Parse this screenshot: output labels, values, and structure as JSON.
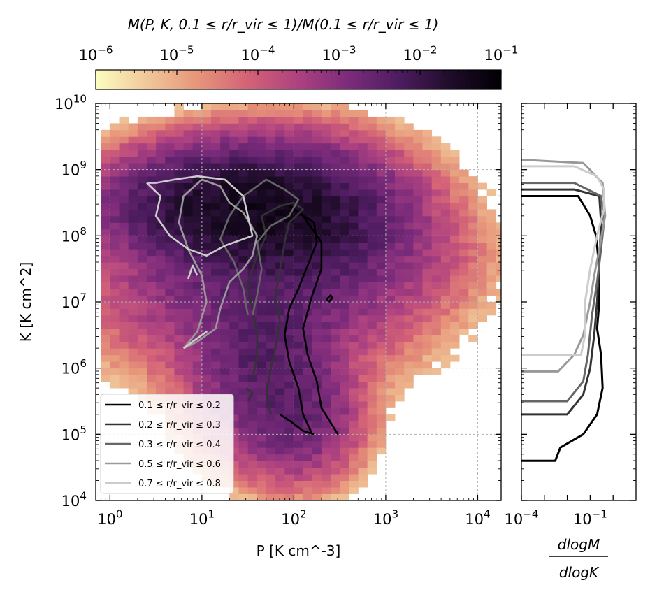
{
  "colorbar": {
    "title": "M(P, K, 0.1 ≤ r/r_vir ≤ 1)/M(0.1 ≤ r/r_vir ≤ 1)",
    "ticks": [
      "10^-6",
      "10^-5",
      "10^-4",
      "10^-3",
      "10^-2",
      "10^-1"
    ],
    "log_range": [
      -6,
      -1
    ],
    "scale": "log",
    "colormap_stops": [
      "#fcfdbf",
      "#f0c89a",
      "#e7967a",
      "#d46277",
      "#ad4180",
      "#7b2b7b",
      "#4d1c60",
      "#1f0c2a",
      "#000004"
    ]
  },
  "chart_data": [
    {
      "type": "heatmap",
      "panel": "main",
      "xlabel": "P [K cm^-3]",
      "ylabel": "K [K cm^2]",
      "x_scale": "log",
      "y_scale": "log",
      "xlim": [
        0.7,
        18000
      ],
      "ylim": [
        10000,
        10000000000
      ],
      "x_ticks": [
        "10^0",
        "10^1",
        "10^2",
        "10^3",
        "10^4"
      ],
      "y_ticks": [
        "10^4",
        "10^5",
        "10^6",
        "10^7",
        "10^8",
        "10^9",
        "10^10"
      ],
      "grid": true,
      "legend_position": "bottom-left",
      "heatmap_extent_note": "mass-weighted distribution, log10 fraction",
      "heat_blobs": [
        {
          "logP": 1.35,
          "logK": 8.45,
          "sigP": 0.55,
          "sigK": 0.35,
          "peak": -1.6
        },
        {
          "logP": 1.85,
          "logK": 8.25,
          "sigP": 0.55,
          "sigK": 0.45,
          "peak": -1.7
        },
        {
          "logP": 1.65,
          "logK": 7.4,
          "sigP": 0.7,
          "sigK": 0.6,
          "peak": -2.6
        },
        {
          "logP": 1.7,
          "logK": 6.2,
          "sigP": 0.35,
          "sigK": 0.6,
          "peak": -2.4
        },
        {
          "logP": 2.0,
          "logK": 5.3,
          "sigP": 0.3,
          "sigK": 0.4,
          "peak": -2.6
        },
        {
          "logP": 2.5,
          "logK": 7.7,
          "sigP": 0.6,
          "sigK": 0.4,
          "peak": -3.2
        }
      ],
      "contour_series": [
        {
          "label": "0.1 ≤ r/r_vir ≤ 0.2",
          "color": "#000000",
          "paths": [
            [
              [
                2.2,
                5.0
              ],
              [
                2.1,
                5.3
              ],
              [
                2.05,
                5.7
              ],
              [
                1.95,
                6.1
              ],
              [
                1.9,
                6.5
              ],
              [
                1.95,
                6.9
              ],
              [
                2.05,
                7.2
              ],
              [
                2.15,
                7.55
              ],
              [
                2.25,
                7.9
              ],
              [
                2.22,
                8.2
              ],
              [
                2.05,
                8.35
              ],
              [
                1.95,
                8.45
              ],
              [
                2.1,
                8.3
              ],
              [
                2.3,
                7.9
              ],
              [
                2.3,
                7.5
              ],
              [
                2.2,
                7.1
              ],
              [
                2.1,
                6.6
              ],
              [
                2.15,
                6.2
              ],
              [
                2.25,
                5.8
              ],
              [
                2.3,
                5.4
              ],
              [
                2.48,
                5.0
              ]
            ],
            [
              [
                1.85,
                5.3
              ],
              [
                1.98,
                5.18
              ],
              [
                2.1,
                5.05
              ],
              [
                2.22,
                5.0
              ]
            ],
            [
              [
                2.38,
                7.0
              ],
              [
                2.42,
                7.06
              ],
              [
                2.4,
                7.1
              ],
              [
                2.36,
                7.04
              ],
              [
                2.38,
                7.0
              ]
            ]
          ]
        },
        {
          "label": "0.2 ≤ r/r_vir ≤ 0.3",
          "color": "#333333",
          "paths": [
            [
              [
                1.55,
                5.8
              ],
              [
                1.6,
                6.2
              ],
              [
                1.6,
                6.5
              ],
              [
                1.55,
                6.9
              ],
              [
                1.5,
                7.3
              ],
              [
                1.6,
                7.7
              ],
              [
                1.7,
                8.0
              ],
              [
                1.65,
                8.3
              ],
              [
                1.85,
                8.45
              ],
              [
                2.0,
                8.5
              ],
              [
                2.1,
                8.4
              ],
              [
                1.95,
                8.2
              ],
              [
                1.9,
                7.9
              ],
              [
                1.85,
                7.5
              ],
              [
                1.8,
                7.1
              ],
              [
                1.85,
                6.7
              ],
              [
                1.8,
                6.3
              ],
              [
                1.75,
                6.0
              ],
              [
                1.7,
                5.6
              ],
              [
                1.75,
                5.3
              ]
            ],
            [
              [
                1.5,
                5.5
              ],
              [
                1.55,
                5.62
              ],
              [
                1.48,
                5.7
              ]
            ]
          ]
        },
        {
          "label": "0.3 ≤ r/r_vir ≤ 0.4",
          "color": "#666666",
          "paths": [
            [
              [
                1.5,
                6.8
              ],
              [
                1.45,
                7.2
              ],
              [
                1.35,
                7.6
              ],
              [
                1.2,
                7.95
              ],
              [
                1.3,
                8.3
              ],
              [
                1.45,
                8.6
              ],
              [
                1.7,
                8.85
              ],
              [
                1.9,
                8.7
              ],
              [
                2.05,
                8.55
              ],
              [
                1.95,
                8.3
              ],
              [
                1.75,
                8.15
              ],
              [
                1.6,
                7.9
              ],
              [
                1.65,
                7.5
              ],
              [
                1.6,
                7.1
              ],
              [
                1.55,
                6.8
              ]
            ]
          ]
        },
        {
          "label": "0.5 ≤ r/r_vir ≤ 0.6",
          "color": "#999999",
          "paths": [
            [
              [
                0.8,
                6.3
              ],
              [
                0.95,
                6.55
              ],
              [
                1.05,
                7.0
              ],
              [
                1.0,
                7.4
              ],
              [
                0.85,
                7.8
              ],
              [
                0.75,
                8.2
              ],
              [
                0.8,
                8.6
              ],
              [
                1.0,
                8.85
              ],
              [
                1.2,
                8.75
              ],
              [
                1.3,
                8.5
              ],
              [
                1.45,
                8.35
              ],
              [
                1.6,
                8.0
              ],
              [
                1.55,
                7.7
              ],
              [
                1.45,
                7.5
              ],
              [
                1.3,
                7.3
              ],
              [
                1.2,
                6.9
              ],
              [
                1.15,
                6.6
              ],
              [
                0.95,
                6.4
              ],
              [
                0.8,
                6.3
              ]
            ]
          ]
        },
        {
          "label": "0.7 ≤ r/r_vir ≤ 0.8",
          "color": "#cccccc",
          "paths": [
            [
              [
                0.4,
                8.8
              ],
              [
                0.55,
                8.6
              ],
              [
                0.5,
                8.3
              ],
              [
                0.65,
                8.0
              ],
              [
                0.85,
                7.8
              ],
              [
                1.05,
                7.7
              ],
              [
                1.25,
                7.85
              ],
              [
                1.55,
                8.0
              ],
              [
                1.5,
                8.3
              ],
              [
                1.45,
                8.6
              ],
              [
                1.25,
                8.85
              ],
              [
                0.95,
                8.9
              ],
              [
                0.7,
                8.85
              ],
              [
                0.5,
                8.8
              ],
              [
                0.4,
                8.8
              ]
            ],
            [
              [
                0.8,
                6.3
              ],
              [
                0.95,
                6.45
              ],
              [
                1.05,
                6.55
              ],
              [
                0.9,
                6.4
              ],
              [
                0.8,
                6.3
              ]
            ],
            [
              [
                0.85,
                7.35
              ],
              [
                0.9,
                7.55
              ],
              [
                0.95,
                7.4
              ]
            ]
          ]
        }
      ]
    },
    {
      "type": "line",
      "panel": "marginal",
      "xlabel": "dlogM / dlogK",
      "x_scale": "log",
      "y_scale": "log",
      "xlim": [
        0.0001,
        10
      ],
      "ylim": [
        10000,
        10000000000
      ],
      "x_ticks": [
        "10^-4",
        "10^-1"
      ],
      "series": [
        {
          "label": "0.1 ≤ r/r_vir ≤ 0.2",
          "color": "#000000",
          "points": [
            [
              0.0001,
              4.6
            ],
            [
              0.003,
              4.6
            ],
            [
              0.005,
              4.8
            ],
            [
              0.05,
              5.0
            ],
            [
              0.2,
              5.3
            ],
            [
              0.35,
              5.7
            ],
            [
              0.3,
              6.2
            ],
            [
              0.2,
              6.6
            ],
            [
              0.25,
              7.0
            ],
            [
              0.25,
              7.5
            ],
            [
              0.18,
              8.0
            ],
            [
              0.1,
              8.3
            ],
            [
              0.03,
              8.6
            ],
            [
              0.0001,
              8.6
            ]
          ]
        },
        {
          "label": "0.2 ≤ r/r_vir ≤ 0.3",
          "color": "#333333",
          "points": [
            [
              0.0001,
              5.3
            ],
            [
              0.01,
              5.3
            ],
            [
              0.05,
              5.6
            ],
            [
              0.1,
              6.0
            ],
            [
              0.15,
              6.5
            ],
            [
              0.2,
              7.0
            ],
            [
              0.25,
              7.6
            ],
            [
              0.3,
              8.2
            ],
            [
              0.25,
              8.6
            ],
            [
              0.02,
              8.7
            ],
            [
              0.0001,
              8.7
            ]
          ]
        },
        {
          "label": "0.3 ≤ r/r_vir ≤ 0.4",
          "color": "#666666",
          "points": [
            [
              0.0001,
              5.5
            ],
            [
              0.01,
              5.5
            ],
            [
              0.05,
              5.8
            ],
            [
              0.08,
              6.2
            ],
            [
              0.12,
              6.8
            ],
            [
              0.2,
              7.3
            ],
            [
              0.3,
              7.8
            ],
            [
              0.4,
              8.2
            ],
            [
              0.3,
              8.6
            ],
            [
              0.02,
              8.8
            ],
            [
              0.0001,
              8.8
            ]
          ]
        },
        {
          "label": "0.5 ≤ r/r_vir ≤ 0.6",
          "color": "#999999",
          "points": [
            [
              0.0001,
              5.95
            ],
            [
              0.004,
              5.95
            ],
            [
              0.02,
              6.2
            ],
            [
              0.05,
              6.5
            ],
            [
              0.1,
              7.0
            ],
            [
              0.15,
              7.4
            ],
            [
              0.25,
              7.8
            ],
            [
              0.45,
              8.3
            ],
            [
              0.35,
              8.8
            ],
            [
              0.05,
              9.1
            ],
            [
              0.0001,
              9.15
            ]
          ]
        },
        {
          "label": "0.7 ≤ r/r_vir ≤ 0.8",
          "color": "#cccccc",
          "points": [
            [
              0.0001,
              6.2
            ],
            [
              0.04,
              6.2
            ],
            [
              0.06,
              6.5
            ],
            [
              0.06,
              7.0
            ],
            [
              0.1,
              7.5
            ],
            [
              0.2,
              8.0
            ],
            [
              0.4,
              8.4
            ],
            [
              0.4,
              8.7
            ],
            [
              0.2,
              8.9
            ],
            [
              0.02,
              9.05
            ],
            [
              0.0001,
              9.05
            ]
          ]
        }
      ]
    }
  ]
}
